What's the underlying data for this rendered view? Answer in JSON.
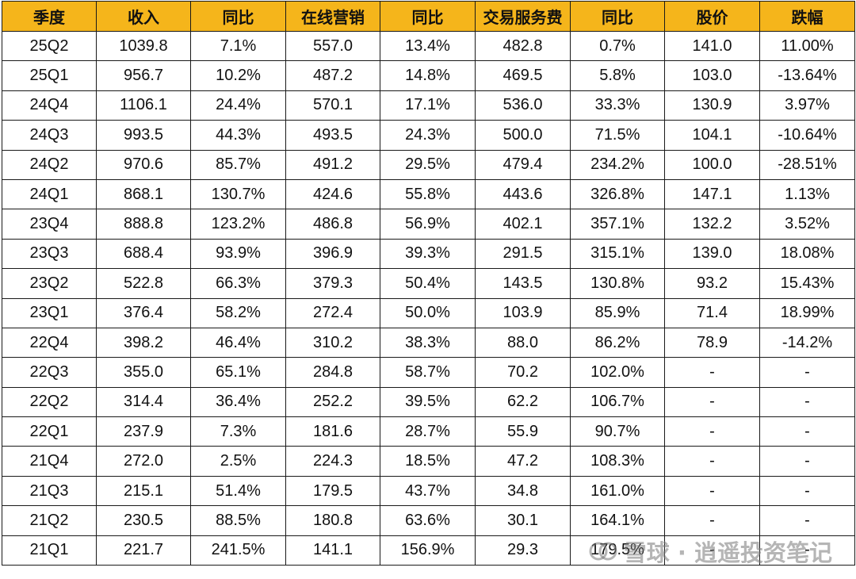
{
  "table": {
    "headers": [
      "季度",
      "收入",
      "同比",
      "在线营销",
      "同比",
      "交易服务费",
      "同比",
      "股价",
      "跌幅"
    ],
    "rows": [
      [
        "25Q2",
        "1039.8",
        "7.1%",
        "557.0",
        "13.4%",
        "482.8",
        "0.7%",
        "141.0",
        "11.00%"
      ],
      [
        "25Q1",
        "956.7",
        "10.2%",
        "487.2",
        "14.8%",
        "469.5",
        "5.8%",
        "103.0",
        "-13.64%"
      ],
      [
        "24Q4",
        "1106.1",
        "24.4%",
        "570.1",
        "17.1%",
        "536.0",
        "33.3%",
        "130.9",
        "3.97%"
      ],
      [
        "24Q3",
        "993.5",
        "44.3%",
        "493.5",
        "24.3%",
        "500.0",
        "71.5%",
        "104.1",
        "-10.64%"
      ],
      [
        "24Q2",
        "970.6",
        "85.7%",
        "491.2",
        "29.5%",
        "479.4",
        "234.2%",
        "100.0",
        "-28.51%"
      ],
      [
        "24Q1",
        "868.1",
        "130.7%",
        "424.6",
        "55.8%",
        "443.6",
        "326.8%",
        "147.1",
        "1.13%"
      ],
      [
        "23Q4",
        "888.8",
        "123.2%",
        "486.8",
        "56.9%",
        "402.1",
        "357.1%",
        "132.2",
        "3.52%"
      ],
      [
        "23Q3",
        "688.4",
        "93.9%",
        "396.9",
        "39.3%",
        "291.5",
        "315.1%",
        "139.0",
        "18.08%"
      ],
      [
        "23Q2",
        "522.8",
        "66.3%",
        "379.3",
        "50.4%",
        "143.5",
        "130.8%",
        "93.2",
        "15.43%"
      ],
      [
        "23Q1",
        "376.4",
        "58.2%",
        "272.4",
        "50.0%",
        "103.9",
        "85.9%",
        "71.4",
        "18.99%"
      ],
      [
        "22Q4",
        "398.2",
        "46.4%",
        "310.2",
        "38.3%",
        "88.0",
        "86.2%",
        "78.9",
        "-14.2%"
      ],
      [
        "22Q3",
        "355.0",
        "65.1%",
        "284.8",
        "58.7%",
        "70.2",
        "102.0%",
        "-",
        "-"
      ],
      [
        "22Q2",
        "314.4",
        "36.4%",
        "252.2",
        "39.5%",
        "62.2",
        "106.7%",
        "-",
        "-"
      ],
      [
        "22Q1",
        "237.9",
        "7.3%",
        "181.6",
        "28.7%",
        "55.9",
        "90.7%",
        "-",
        "-"
      ],
      [
        "21Q4",
        "272.0",
        "2.5%",
        "224.3",
        "18.5%",
        "47.2",
        "108.3%",
        "-",
        "-"
      ],
      [
        "21Q3",
        "215.1",
        "51.4%",
        "179.5",
        "43.7%",
        "34.8",
        "161.0%",
        "-",
        "-"
      ],
      [
        "21Q2",
        "230.5",
        "88.5%",
        "180.8",
        "63.6%",
        "30.1",
        "164.1%",
        "-",
        "-"
      ],
      [
        "21Q1",
        "221.7",
        "241.5%",
        "141.1",
        "156.9%",
        "29.3",
        "179.5%",
        "-",
        "-"
      ]
    ]
  },
  "watermark": {
    "text": "雪球 · 逍遥投资笔记",
    "icon": "snowball-logo-icon"
  },
  "colors": {
    "header_bg": "#f5b51b",
    "border": "#1a1a1a",
    "text": "#111111"
  }
}
